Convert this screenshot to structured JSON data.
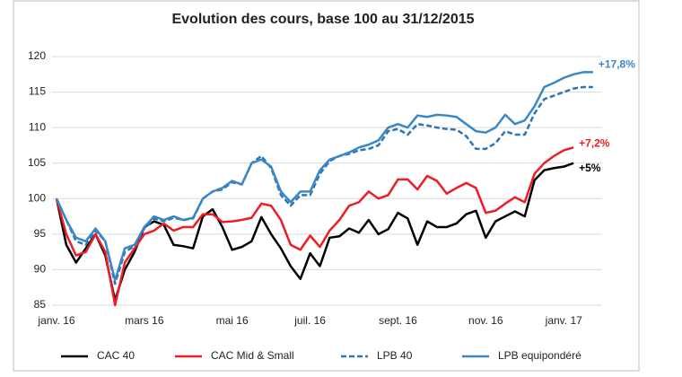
{
  "chart_data": {
    "type": "line",
    "title": "Evolution des cours, base 100 au 31/12/2015",
    "categories": [
      "janv. 16",
      null,
      null,
      null,
      null,
      null,
      null,
      null,
      null,
      "mars 16",
      null,
      null,
      null,
      null,
      null,
      null,
      null,
      null,
      "mai 16",
      null,
      null,
      null,
      null,
      null,
      null,
      null,
      "juil. 16",
      null,
      null,
      null,
      null,
      null,
      null,
      null,
      null,
      "sept. 16",
      null,
      null,
      null,
      null,
      null,
      null,
      null,
      null,
      "nov. 16",
      null,
      null,
      null,
      null,
      null,
      null,
      null,
      "janv. 17",
      null,
      null,
      null
    ],
    "ylim": [
      85,
      120
    ],
    "yticks": [
      85,
      90,
      95,
      100,
      105,
      110,
      115,
      120
    ],
    "grid": true,
    "legend": "bottom",
    "series": [
      {
        "name": "CAC 40",
        "color": "#000000",
        "style": "solid",
        "end_label": "+5%",
        "values": [
          100,
          93.5,
          91,
          93,
          95,
          92,
          85.7,
          90,
          92.5,
          96,
          96.8,
          96.3,
          93.5,
          93.3,
          93,
          97.5,
          98.5,
          96,
          92.8,
          93.2,
          94,
          97.4,
          95,
          93,
          90.5,
          88.7,
          92.3,
          90.5,
          94.5,
          94.7,
          95.8,
          95.2,
          97,
          95,
          95.7,
          98,
          97.2,
          93.5,
          96.8,
          96,
          96,
          96.5,
          97.8,
          98.3,
          94.5,
          96.8,
          97.5,
          98.2,
          97.5,
          102.6,
          104,
          104.3,
          104.5,
          105,
          null,
          null
        ]
      },
      {
        "name": "CAC Mid & Small",
        "color": "#ee1c25",
        "style": "solid",
        "end_label": "+7,2%",
        "values": [
          100,
          95,
          92,
          92.5,
          95,
          92.5,
          85,
          91,
          93,
          95,
          95.5,
          96.5,
          95.5,
          96,
          96,
          97.8,
          97.8,
          96.7,
          96.8,
          97,
          97.3,
          99.3,
          99,
          97,
          93.5,
          92.8,
          94.8,
          93.2,
          95.5,
          97,
          99,
          99.5,
          101,
          100,
          100.5,
          102.7,
          102.7,
          101.3,
          103.2,
          102.5,
          100.7,
          101.5,
          102.2,
          101.5,
          98,
          98.3,
          99.3,
          100.2,
          99.5,
          103.5,
          105,
          106,
          106.8,
          107.2,
          null,
          null
        ]
      },
      {
        "name": "LPB 40",
        "color": "#2e75b6",
        "style": "dashed",
        "values": [
          100,
          97,
          94,
          93.5,
          95.5,
          94,
          88,
          92.5,
          93.3,
          95.8,
          97.2,
          96.8,
          97.3,
          97,
          97.2,
          100,
          101,
          101.3,
          102.3,
          102,
          105,
          106,
          104.3,
          100.5,
          99,
          100.5,
          100.5,
          103.5,
          105.3,
          106,
          106.3,
          106.8,
          107,
          107.5,
          109.5,
          109.8,
          109,
          110.5,
          110.3,
          110,
          109.8,
          109.7,
          108.8,
          107,
          107,
          107.8,
          109.5,
          109,
          109,
          112,
          114,
          114.5,
          115,
          115.5,
          115.7,
          115.7
        ]
      },
      {
        "name": "LPB equipondéré",
        "color": "#3a87c8",
        "style": "solid",
        "end_label": "+17,8%",
        "values": [
          100,
          97,
          94.5,
          94,
          95.8,
          94,
          88.5,
          93,
          93.5,
          96,
          97.5,
          97,
          97.5,
          97,
          97.3,
          100,
          101,
          101.5,
          102.5,
          102,
          105,
          105.5,
          104.5,
          101,
          99.5,
          101,
          101,
          104,
          105.5,
          106,
          106.5,
          107.2,
          107.6,
          108.2,
          110,
          110.5,
          110,
          111.7,
          111.5,
          111.8,
          111.7,
          111.5,
          110.5,
          109.5,
          109.3,
          110,
          111.8,
          110.5,
          111,
          113,
          115.7,
          116.3,
          117,
          117.5,
          117.8,
          117.8
        ]
      }
    ]
  }
}
